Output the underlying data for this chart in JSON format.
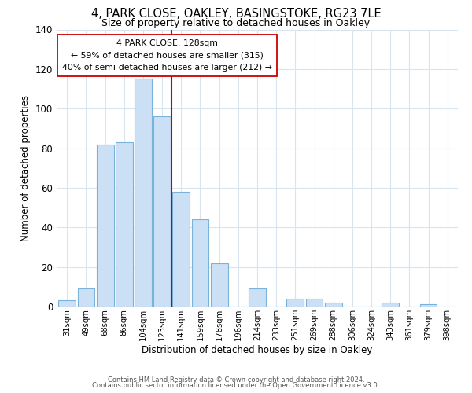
{
  "title1": "4, PARK CLOSE, OAKLEY, BASINGSTOKE, RG23 7LE",
  "title2": "Size of property relative to detached houses in Oakley",
  "xlabel": "Distribution of detached houses by size in Oakley",
  "ylabel": "Number of detached properties",
  "bar_labels": [
    "31sqm",
    "49sqm",
    "68sqm",
    "86sqm",
    "104sqm",
    "123sqm",
    "141sqm",
    "159sqm",
    "178sqm",
    "196sqm",
    "214sqm",
    "233sqm",
    "251sqm",
    "269sqm",
    "288sqm",
    "306sqm",
    "324sqm",
    "343sqm",
    "361sqm",
    "379sqm",
    "398sqm"
  ],
  "bar_values": [
    3,
    9,
    82,
    83,
    115,
    96,
    58,
    44,
    22,
    0,
    9,
    0,
    4,
    4,
    2,
    0,
    0,
    2,
    0,
    1,
    0
  ],
  "bar_color": "#cce0f5",
  "bar_edgecolor": "#7ab3d9",
  "vline_x": 5.5,
  "vline_color": "#cc0000",
  "ylim": [
    0,
    140
  ],
  "yticks": [
    0,
    20,
    40,
    60,
    80,
    100,
    120,
    140
  ],
  "annotation_line1": "4 PARK CLOSE: 128sqm",
  "annotation_line2": "← 59% of detached houses are smaller (315)",
  "annotation_line3": "40% of semi-detached houses are larger (212) →",
  "footer1": "Contains HM Land Registry data © Crown copyright and database right 2024.",
  "footer2": "Contains public sector information licensed under the Open Government Licence v3.0.",
  "background_color": "#ffffff",
  "grid_color": "#d8e4f0"
}
